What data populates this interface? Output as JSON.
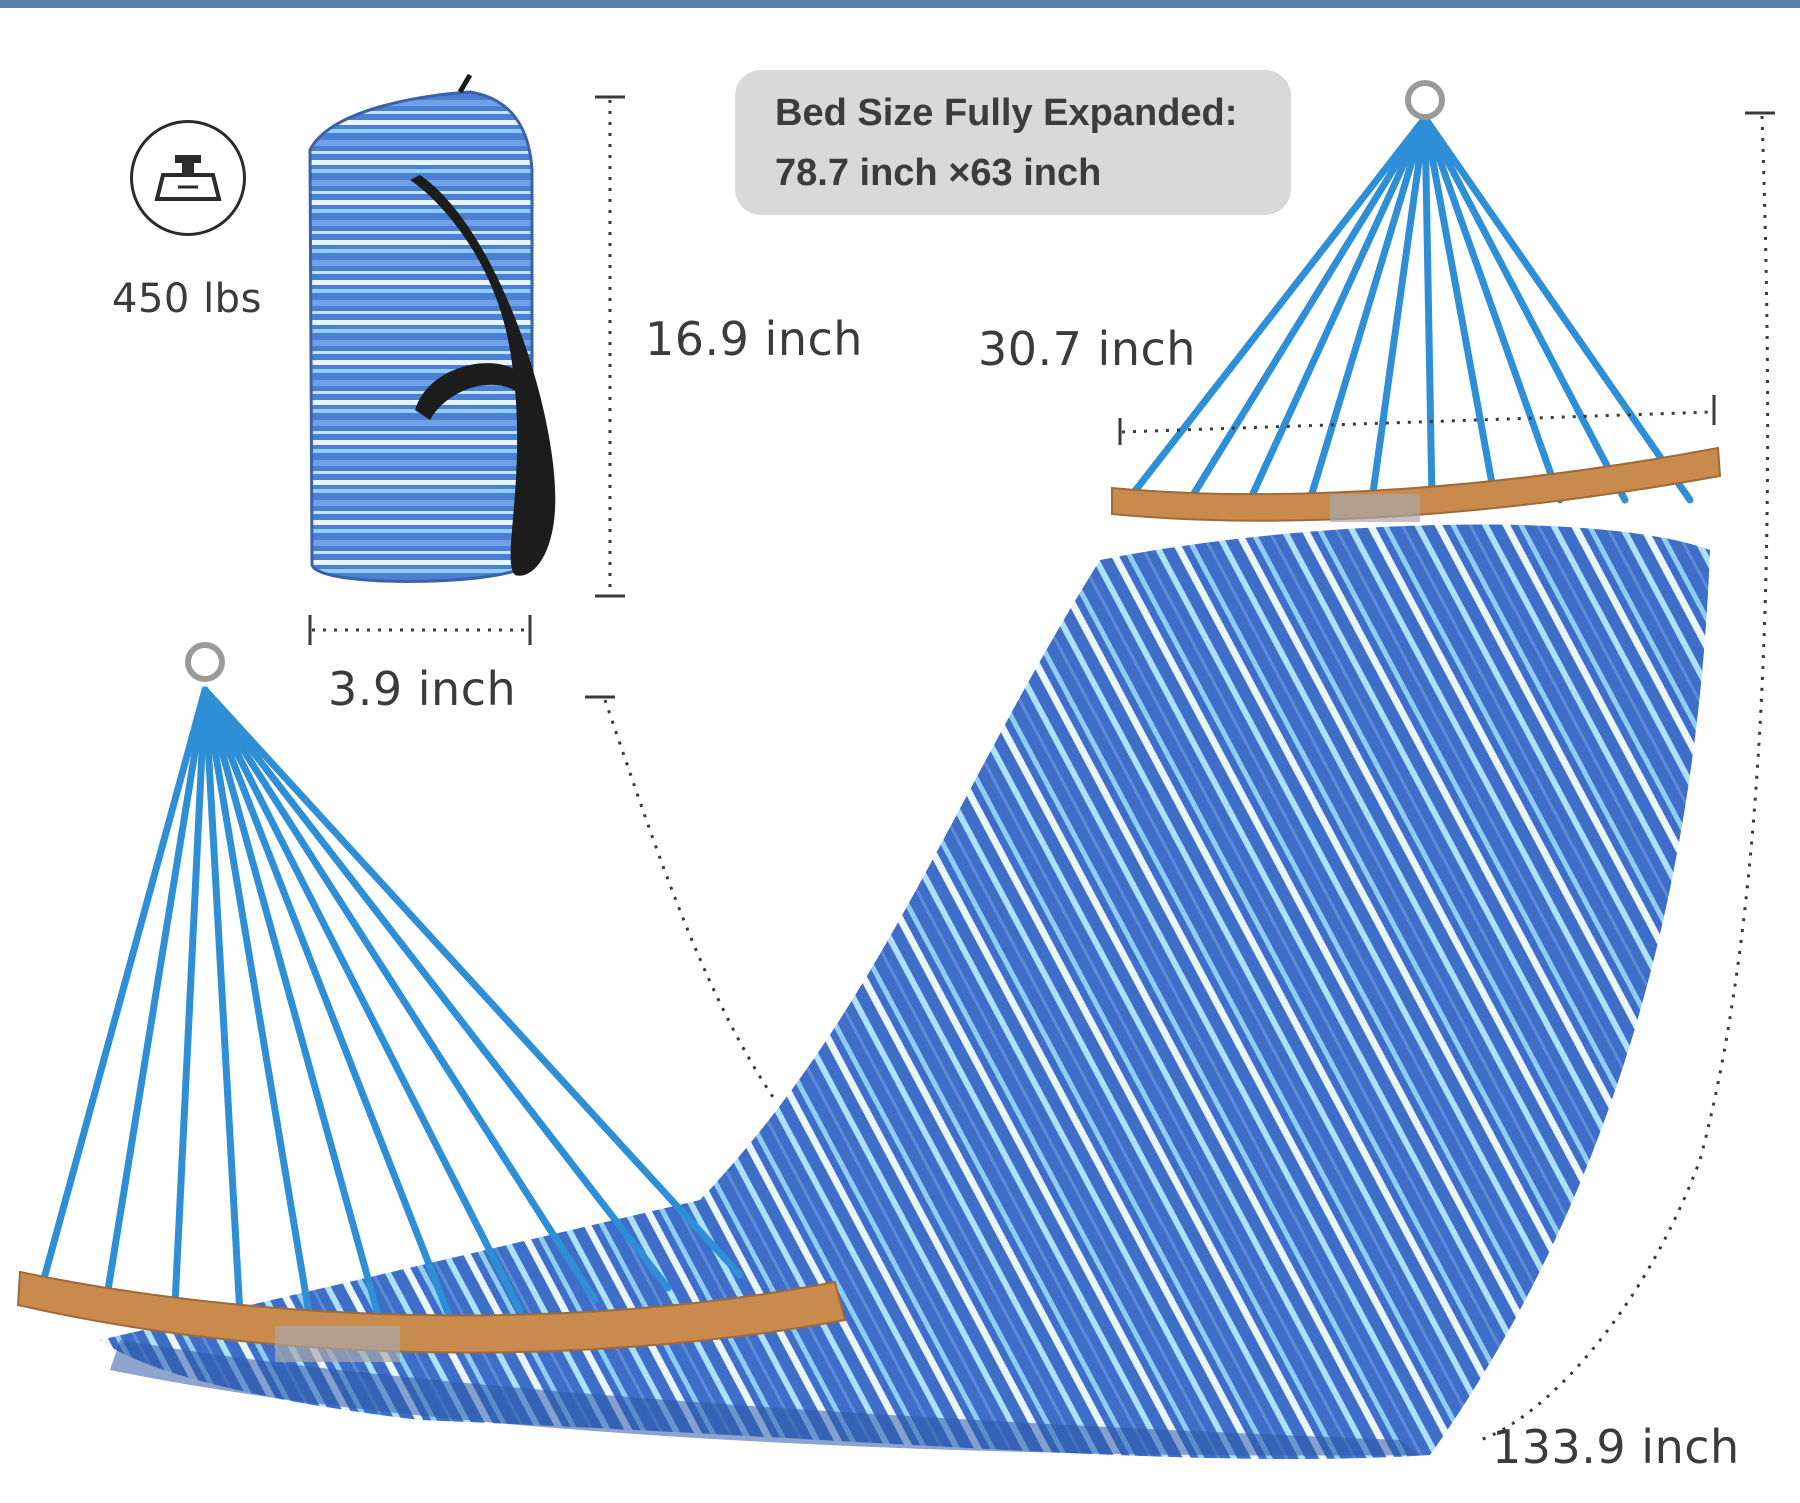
{
  "capacity": {
    "icon": "weight-icon",
    "label": "450 lbs"
  },
  "bed_size": {
    "title": "Bed Size Fully Expanded:",
    "dimensions": "78.7 inch ×63 inch"
  },
  "bag": {
    "height_label": "16.9 inch",
    "width_label": "3.9 inch"
  },
  "hammock": {
    "spreader_label": "30.7 inch",
    "length_label": "133.9 inch"
  },
  "colors": {
    "fabric_blue": "#3d6fc6",
    "stripe_light": "#9fd3f5",
    "stripe_white": "#e9f4fb",
    "rope": "#2f8fd6",
    "wood": "#c98a4e",
    "header_bar": "#5b7fa8"
  }
}
